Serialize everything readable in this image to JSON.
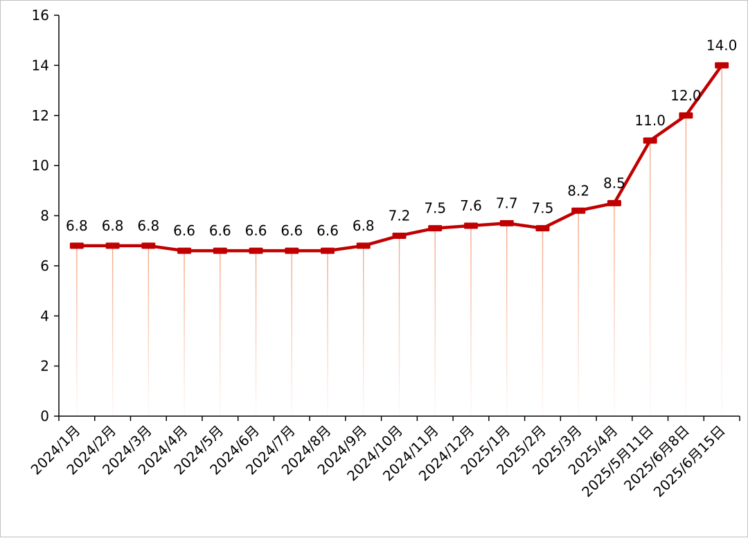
{
  "chart_data": {
    "type": "line",
    "title": "",
    "xlabel": "",
    "ylabel": "",
    "ylim": [
      0,
      16
    ],
    "yticks": [
      0,
      2,
      4,
      6,
      8,
      10,
      12,
      14,
      16
    ],
    "grid": false,
    "categories": [
      "2024/1月",
      "2024/2月",
      "2024/3月",
      "2024/4月",
      "2024/5月",
      "2024/6月",
      "2024/7月",
      "2024/8月",
      "2024/9月",
      "2024/10月",
      "2024/11月",
      "2024/12月",
      "2025/1月",
      "2025/2月",
      "2025/3月",
      "2025/4月",
      "2025/5月11日",
      "2025/6月8日",
      "2025/6月15日"
    ],
    "series": [
      {
        "name": "",
        "values": [
          6.8,
          6.8,
          6.8,
          6.6,
          6.6,
          6.6,
          6.6,
          6.6,
          6.8,
          7.2,
          7.5,
          7.6,
          7.7,
          7.5,
          8.2,
          8.5,
          11.0,
          12.0,
          14.0
        ],
        "labels": [
          "6.8",
          "6.8",
          "6.8",
          "6.6",
          "6.6",
          "6.6",
          "6.6",
          "6.6",
          "6.8",
          "7.2",
          "7.5",
          "7.6",
          "7.7",
          "7.5",
          "8.2",
          "8.5",
          "11.0",
          "12.0",
          "14.0"
        ]
      }
    ],
    "colors": {
      "line": "#c00000",
      "drop_line": "#f4a582",
      "axis": "#000000"
    }
  }
}
